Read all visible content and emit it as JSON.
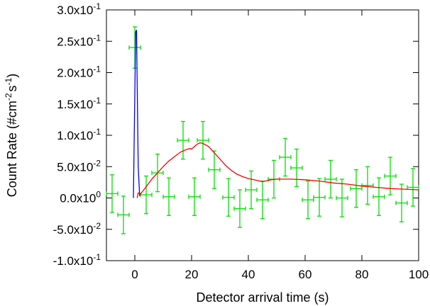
{
  "chart_data": {
    "type": "scatter",
    "xlabel": "Detector arrival time (s)",
    "ylabel": "Count Rate (#cm^-2 s^-1)",
    "ylabel_parts": [
      "Count Rate (#cm",
      "-2",
      "s",
      "-1",
      ")"
    ],
    "xlim": [
      -10,
      100
    ],
    "ylim": [
      -0.1,
      0.3
    ],
    "x_ticks": [
      0,
      20,
      40,
      60,
      80,
      100
    ],
    "x_tick_labels": [
      "0",
      "20",
      "40",
      "60",
      "80",
      "100"
    ],
    "y_ticks": [
      {
        "value": 0.3,
        "mantissa": "3.0x10",
        "exp": "-1"
      },
      {
        "value": 0.25,
        "mantissa": "2.5x10",
        "exp": "-1"
      },
      {
        "value": 0.2,
        "mantissa": "2.0x10",
        "exp": "-1"
      },
      {
        "value": 0.15,
        "mantissa": "1.5x10",
        "exp": "-1"
      },
      {
        "value": 0.1,
        "mantissa": "1.0x10",
        "exp": "-1"
      },
      {
        "value": 0.05,
        "mantissa": "5.0x10",
        "exp": "-2"
      },
      {
        "value": 0.0,
        "mantissa": "0.0x10",
        "exp": "0"
      },
      {
        "value": -0.05,
        "mantissa": "-5.0x10",
        "exp": "-2"
      },
      {
        "value": -0.1,
        "mantissa": "-1.0x10",
        "exp": "-1"
      }
    ],
    "grid": false,
    "legend": "none",
    "series": [
      {
        "kind": "errorbar",
        "color": "#00e000",
        "points": [
          {
            "x": -8,
            "y": 0.007,
            "xerr": 2,
            "yerr": 0.03
          },
          {
            "x": -4,
            "y": -0.027,
            "xerr": 2,
            "yerr": 0.03
          },
          {
            "x": 0,
            "y": 0.24,
            "xerr": 2,
            "yerr": 0.033
          },
          {
            "x": 4,
            "y": 0.005,
            "xerr": 2,
            "yerr": 0.03
          },
          {
            "x": 8,
            "y": 0.04,
            "xerr": 2,
            "yerr": 0.03
          },
          {
            "x": 12,
            "y": 0.002,
            "xerr": 2,
            "yerr": 0.03
          },
          {
            "x": 17,
            "y": 0.092,
            "xerr": 2,
            "yerr": 0.03
          },
          {
            "x": 21,
            "y": 0.002,
            "xerr": 2,
            "yerr": 0.03
          },
          {
            "x": 24,
            "y": 0.092,
            "xerr": 2,
            "yerr": 0.03
          },
          {
            "x": 28,
            "y": 0.045,
            "xerr": 2,
            "yerr": 0.03
          },
          {
            "x": 33,
            "y": 0.001,
            "xerr": 2,
            "yerr": 0.03
          },
          {
            "x": 37,
            "y": -0.017,
            "xerr": 2,
            "yerr": 0.03
          },
          {
            "x": 41,
            "y": 0.013,
            "xerr": 2,
            "yerr": 0.03
          },
          {
            "x": 45,
            "y": -0.003,
            "xerr": 2,
            "yerr": 0.03
          },
          {
            "x": 49,
            "y": 0.03,
            "xerr": 2,
            "yerr": 0.03
          },
          {
            "x": 53,
            "y": 0.065,
            "xerr": 2,
            "yerr": 0.03
          },
          {
            "x": 57,
            "y": 0.048,
            "xerr": 2,
            "yerr": 0.03
          },
          {
            "x": 61,
            "y": -0.003,
            "xerr": 2,
            "yerr": 0.03
          },
          {
            "x": 65,
            "y": 0.001,
            "xerr": 2,
            "yerr": 0.03
          },
          {
            "x": 69,
            "y": 0.03,
            "xerr": 2,
            "yerr": 0.03
          },
          {
            "x": 73,
            "y": 0.0,
            "xerr": 2,
            "yerr": 0.03
          },
          {
            "x": 78,
            "y": 0.015,
            "xerr": 2,
            "yerr": 0.03
          },
          {
            "x": 82,
            "y": 0.02,
            "xerr": 2,
            "yerr": 0.03
          },
          {
            "x": 86,
            "y": 0.002,
            "xerr": 2,
            "yerr": 0.03
          },
          {
            "x": 90,
            "y": 0.035,
            "xerr": 2,
            "yerr": 0.03
          },
          {
            "x": 94,
            "y": -0.008,
            "xerr": 2,
            "yerr": 0.03
          },
          {
            "x": 98,
            "y": 0.017,
            "xerr": 2,
            "yerr": 0.03
          }
        ]
      },
      {
        "kind": "line",
        "color": "#0000ff",
        "points": [
          [
            -0.5,
            0.0
          ],
          [
            0.3,
            0.265
          ],
          [
            0.6,
            0.268
          ],
          [
            1.2,
            0.05
          ],
          [
            1.7,
            0.003
          ]
        ]
      },
      {
        "kind": "line",
        "color": "#ff0000",
        "points": [
          [
            0.8,
            0.0
          ],
          [
            1.2,
            0.008
          ],
          [
            2,
            0.006
          ],
          [
            4,
            0.018
          ],
          [
            6,
            0.03
          ],
          [
            8,
            0.04
          ],
          [
            10,
            0.05
          ],
          [
            12,
            0.059
          ],
          [
            14,
            0.066
          ],
          [
            16,
            0.073
          ],
          [
            18,
            0.077
          ],
          [
            19.5,
            0.079
          ],
          [
            20,
            0.078
          ],
          [
            21,
            0.082
          ],
          [
            22,
            0.086
          ],
          [
            23,
            0.088
          ],
          [
            24,
            0.087
          ],
          [
            26,
            0.082
          ],
          [
            28,
            0.072
          ],
          [
            30,
            0.062
          ],
          [
            32,
            0.052
          ],
          [
            34,
            0.044
          ],
          [
            36,
            0.038
          ],
          [
            38,
            0.034
          ],
          [
            40,
            0.031
          ],
          [
            42,
            0.029
          ],
          [
            44,
            0.027
          ],
          [
            45,
            0.026
          ],
          [
            46,
            0.027
          ],
          [
            48,
            0.029
          ],
          [
            50,
            0.03
          ],
          [
            55,
            0.03
          ],
          [
            60,
            0.029
          ],
          [
            65,
            0.027
          ],
          [
            70,
            0.024
          ],
          [
            75,
            0.022
          ],
          [
            80,
            0.019
          ],
          [
            85,
            0.017
          ],
          [
            90,
            0.015
          ],
          [
            95,
            0.014
          ],
          [
            100,
            0.013
          ]
        ]
      }
    ]
  }
}
